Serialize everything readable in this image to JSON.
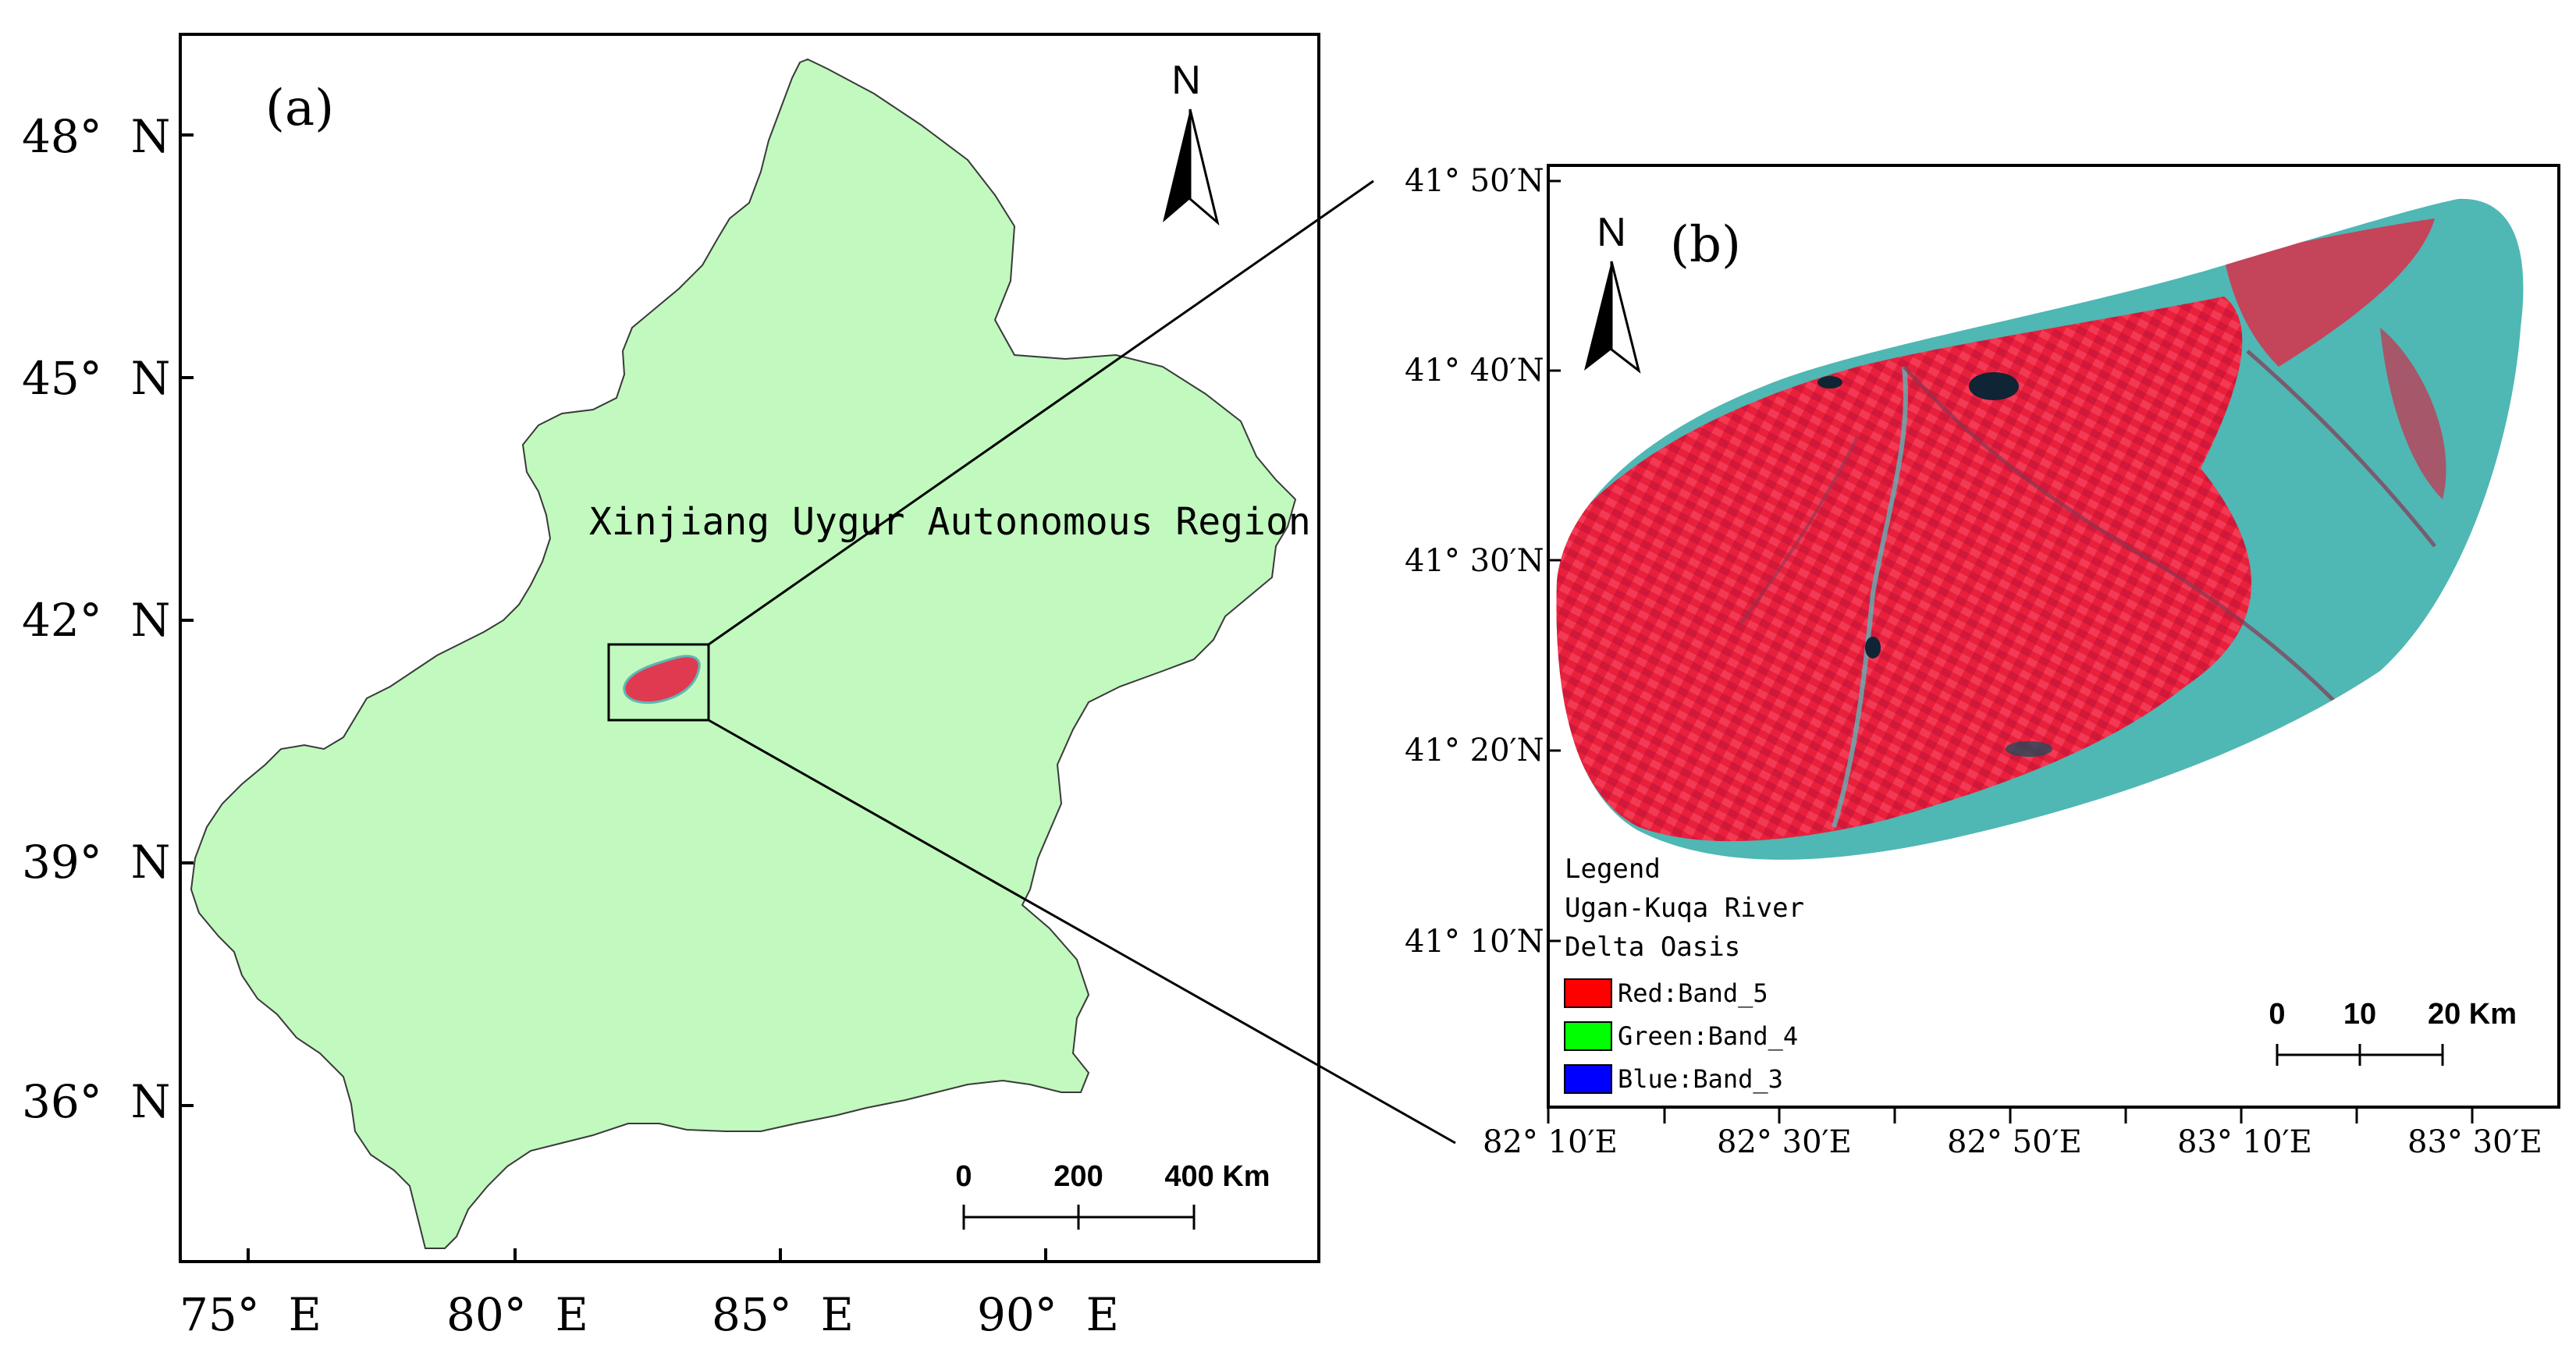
{
  "panel_a": {
    "label": "(a)",
    "region_label": "Xinjiang Uygur Autonomous Region",
    "north": "N",
    "lat_labels": [
      "48°  N",
      "45°  N",
      "42°  N",
      "39°  N",
      "36°  N"
    ],
    "lon_labels": [
      "75°  E",
      "80°  E",
      "85°  E",
      "90°  E"
    ],
    "scale": {
      "ticks": [
        "0",
        "200",
        "400 Km"
      ]
    },
    "region_fill": "#c1f9be"
  },
  "panel_b": {
    "label": "(b)",
    "north": "N",
    "lat_labels": [
      "41° 50′N",
      "41° 40′N",
      "41° 30′N",
      "41° 20′N",
      "41° 10′N"
    ],
    "lon_labels": [
      "82° 10′E",
      "82° 30′E",
      "82° 50′E",
      "83° 10′E",
      "83° 30′E"
    ],
    "scale": {
      "ticks": [
        "0",
        "10",
        "20 Km"
      ]
    },
    "legend": {
      "title": "Legend",
      "subtitle_line1": "Ugan-Kuqa River",
      "subtitle_line2": "Delta Oasis",
      "items": [
        {
          "label": "Red:Band_5",
          "color": "#ff0000"
        },
        {
          "label": "Green:Band_4",
          "color": "#00ff00"
        },
        {
          "label": "Blue:Band_3",
          "color": "#0000ff"
        }
      ]
    },
    "image_colors": {
      "vegetation": "#e8203c",
      "bare": "#4fb7b4",
      "water": "#0f2434"
    }
  }
}
